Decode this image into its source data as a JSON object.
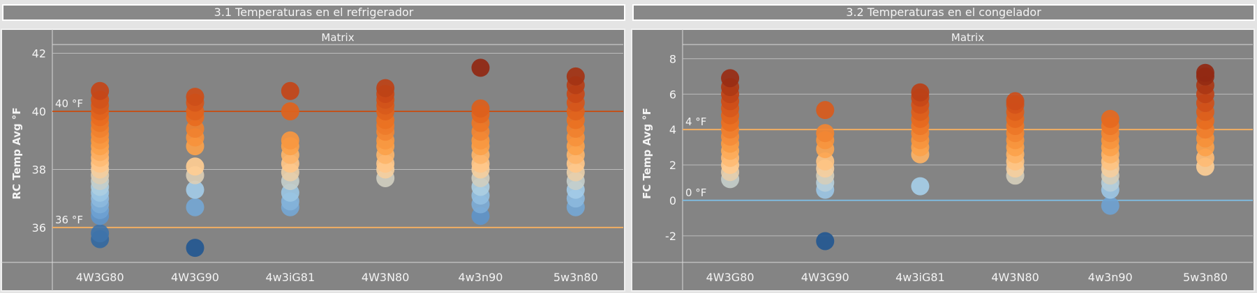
{
  "panels": [
    {
      "title": "3.1 Temperaturas en el refrigerador",
      "chart_data": {
        "type": "scatter",
        "column_header": "Matrix",
        "ylabel": "RC Temp Avg °F",
        "ylim": [
          34.8,
          42.3
        ],
        "yticks": [
          "36",
          "38",
          "40",
          "42"
        ],
        "categories": [
          "4W3G80",
          "4W3G90",
          "4w3iG81",
          "4W3N80",
          "4w3n90",
          "5w3n80"
        ],
        "reference_lines": [
          {
            "value": 40,
            "label": "40 °F",
            "color": "#c1521b"
          },
          {
            "value": 36,
            "label": "36 °F",
            "color": "#f2ae62"
          }
        ],
        "color_range": [
          35.3,
          41.5
        ],
        "points": [
          [
            35.6,
            35.8,
            36.4,
            36.6,
            36.8,
            37.0,
            37.2,
            37.4,
            37.6,
            37.8,
            38.0,
            38.2,
            38.4,
            38.6,
            38.8,
            39.0,
            39.2,
            39.4,
            39.6,
            39.8,
            40.0,
            40.2,
            40.4,
            40.7
          ],
          [
            35.3,
            36.7,
            37.3,
            37.8,
            38.1,
            38.8,
            39.1,
            39.4,
            39.8,
            40.0,
            40.3,
            40.5
          ],
          [
            36.7,
            36.9,
            37.2,
            37.6,
            37.9,
            38.2,
            38.5,
            38.8,
            39.0,
            40.0,
            40.7
          ],
          [
            37.7,
            38.0,
            38.2,
            38.5,
            38.8,
            39.0,
            39.3,
            39.5,
            39.7,
            40.0,
            40.2,
            40.4,
            40.6,
            40.8
          ],
          [
            36.4,
            36.8,
            37.1,
            37.4,
            37.7,
            38.0,
            38.2,
            38.5,
            38.8,
            39.0,
            39.3,
            39.6,
            39.9,
            40.1,
            41.5
          ],
          [
            36.7,
            37.0,
            37.3,
            37.6,
            37.9,
            38.2,
            38.5,
            38.8,
            39.1,
            39.4,
            39.7,
            40.0,
            40.3,
            40.6,
            40.9,
            41.2
          ]
        ]
      }
    },
    {
      "title": "3.2 Temperaturas en el congelador",
      "chart_data": {
        "type": "scatter",
        "column_header": "Matrix",
        "ylabel": "FC Temp Avg °F",
        "ylim": [
          -3.5,
          8.8
        ],
        "yticks": [
          "-2",
          "0",
          "2",
          "4",
          "6",
          "8"
        ],
        "categories": [
          "4W3G80",
          "4W3G90",
          "4w3iG81",
          "4W3N80",
          "4w3n90",
          "5w3n80"
        ],
        "reference_lines": [
          {
            "value": 4,
            "label": "4 °F",
            "color": "#f2ae62"
          },
          {
            "value": 0,
            "label": "0 °F",
            "color": "#7fb8db"
          }
        ],
        "color_range": [
          -2.3,
          7.1
        ],
        "points": [
          [
            1.2,
            1.6,
            2.0,
            2.4,
            2.8,
            3.2,
            3.6,
            4.0,
            4.4,
            4.8,
            5.2,
            5.6,
            6.0,
            6.4,
            6.9
          ],
          [
            -2.3,
            0.6,
            1.0,
            1.4,
            1.8,
            2.2,
            2.9,
            3.4,
            3.8,
            5.1
          ],
          [
            0.8,
            2.6,
            3.0,
            3.4,
            3.8,
            4.2,
            4.6,
            5.0,
            5.4,
            5.8,
            6.1
          ],
          [
            1.4,
            1.8,
            2.2,
            2.6,
            3.0,
            3.4,
            3.8,
            4.2,
            4.6,
            5.0,
            5.4,
            5.6
          ],
          [
            -0.3,
            0.6,
            1.0,
            1.4,
            1.8,
            2.2,
            2.6,
            3.0,
            3.4,
            3.8,
            4.2,
            4.6
          ],
          [
            1.9,
            2.4,
            3.0,
            3.5,
            4.0,
            4.5,
            5.0,
            5.5,
            6.0,
            6.5,
            7.0,
            7.2
          ]
        ]
      }
    }
  ]
}
